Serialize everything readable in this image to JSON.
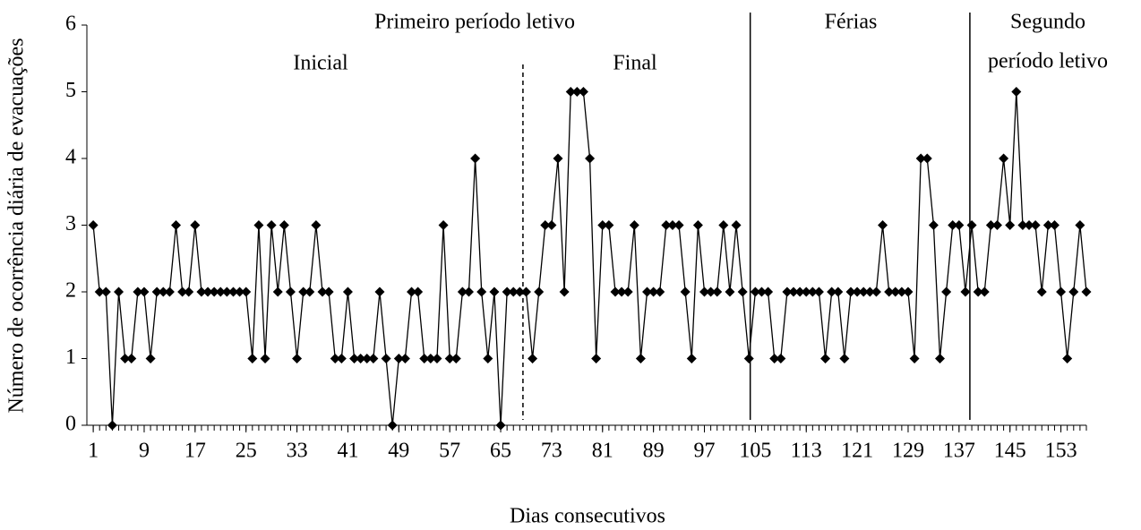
{
  "chart_data": {
    "type": "line",
    "x_label": "Dias consecutivos",
    "y_label": "Número de ocorrência diária de evacuações",
    "x": [
      1,
      2,
      3,
      4,
      5,
      6,
      7,
      8,
      9,
      10,
      11,
      12,
      13,
      14,
      15,
      16,
      17,
      18,
      19,
      20,
      21,
      22,
      23,
      24,
      25,
      26,
      27,
      28,
      29,
      30,
      31,
      32,
      33,
      34,
      35,
      36,
      37,
      38,
      39,
      40,
      41,
      42,
      43,
      44,
      45,
      46,
      47,
      48,
      49,
      50,
      51,
      52,
      53,
      54,
      55,
      56,
      57,
      58,
      59,
      60,
      61,
      62,
      63,
      64,
      65,
      66,
      67,
      68,
      69,
      70,
      71,
      72,
      73,
      74,
      75,
      76,
      77,
      78,
      79,
      80,
      81,
      82,
      83,
      84,
      85,
      86,
      87,
      88,
      89,
      90,
      91,
      92,
      93,
      94,
      95,
      96,
      97,
      98,
      99,
      100,
      101,
      102,
      103,
      104,
      105,
      106,
      107,
      108,
      109,
      110,
      111,
      112,
      113,
      114,
      115,
      116,
      117,
      118,
      119,
      120,
      121,
      122,
      123,
      124,
      125,
      126,
      127,
      128,
      129,
      130,
      131,
      132,
      133,
      134,
      135,
      136,
      137,
      138,
      139,
      140,
      141,
      142,
      143,
      144,
      145,
      146,
      147,
      148,
      149,
      150,
      151,
      152,
      153,
      154,
      155,
      156,
      157
    ],
    "series": [
      {
        "color": "#000000",
        "values": [
          3,
          2,
          2,
          0,
          2,
          1,
          1,
          2,
          2,
          1,
          2,
          2,
          2,
          3,
          2,
          2,
          3,
          2,
          2,
          2,
          2,
          2,
          2,
          2,
          2,
          1,
          3,
          1,
          3,
          2,
          3,
          2,
          1,
          2,
          2,
          3,
          2,
          2,
          1,
          1,
          2,
          1,
          1,
          1,
          1,
          2,
          1,
          0,
          1,
          1,
          2,
          2,
          1,
          1,
          1,
          3,
          1,
          1,
          2,
          2,
          4,
          2,
          1,
          2,
          0,
          2,
          2,
          2,
          2,
          1,
          2,
          3,
          3,
          4,
          2,
          5,
          5,
          5,
          4,
          1,
          3,
          3,
          2,
          2,
          2,
          3,
          1,
          2,
          2,
          2,
          3,
          3,
          3,
          2,
          1,
          3,
          2,
          2,
          2,
          3,
          2,
          3,
          2,
          1,
          2,
          2,
          2,
          1,
          1,
          2,
          2,
          2,
          2,
          2,
          2,
          1,
          2,
          2,
          1,
          2,
          2,
          2,
          2,
          2,
          3,
          2,
          2,
          2,
          2,
          1,
          4,
          4,
          3,
          1,
          2,
          3,
          3,
          2,
          3,
          2,
          2,
          3,
          3,
          4,
          3,
          5,
          3,
          3,
          3,
          2,
          3,
          3,
          2,
          1,
          2,
          3,
          2
        ]
      }
    ],
    "xlim": [
      0,
      157
    ],
    "xticks": [
      1,
      9,
      17,
      25,
      33,
      41,
      49,
      57,
      65,
      73,
      81,
      89,
      97,
      105,
      113,
      121,
      129,
      137,
      145,
      153
    ],
    "ylim": [
      0,
      6
    ],
    "yticks": [
      0,
      1,
      2,
      3,
      4,
      5,
      6
    ],
    "dividers": [
      {
        "x": 68.5,
        "style": "dashed"
      },
      {
        "x": 104.2,
        "style": "solid"
      },
      {
        "x": 138.7,
        "style": "solid"
      }
    ],
    "annotations": {
      "period1": "Primeiro período letivo",
      "initial": "Inicial",
      "final": "Final",
      "holidays": "Férias",
      "period2_line1": "Segundo",
      "period2_line2": "período letivo"
    }
  }
}
